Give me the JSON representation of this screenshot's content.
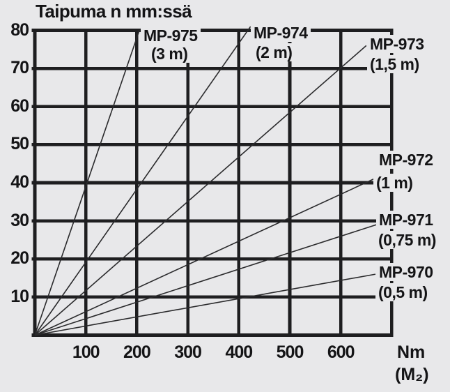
{
  "chart_data": {
    "type": "line",
    "title": "Taipuma n mm:ssä",
    "xlabel_unit_line1": "Nm",
    "xlabel_unit_line2": "(M₂)",
    "ylabel": "Taipuma n mm:ssä",
    "xlim": [
      0,
      700
    ],
    "ylim": [
      0,
      80
    ],
    "grid": true,
    "x_ticks": [
      100,
      200,
      300,
      400,
      500,
      600
    ],
    "y_ticks": [
      10,
      20,
      30,
      40,
      50,
      60,
      70,
      80
    ],
    "legend_position": "labels-on-lines",
    "series": [
      {
        "name": "MP-975",
        "length_label": "(3 m)",
        "points": [
          [
            0,
            0
          ],
          [
            205,
            80
          ]
        ]
      },
      {
        "name": "MP-974",
        "length_label": "(2 m)",
        "points": [
          [
            0,
            0
          ],
          [
            423,
            81
          ]
        ]
      },
      {
        "name": "MP-973",
        "length_label": "(1,5 m)",
        "points": [
          [
            0,
            0
          ],
          [
            650,
            76
          ]
        ]
      },
      {
        "name": "MP-972",
        "length_label": "(1 m)",
        "points": [
          [
            0,
            0
          ],
          [
            665,
            41
          ]
        ]
      },
      {
        "name": "MP-971",
        "length_label": "(0,75 m)",
        "points": [
          [
            0,
            0
          ],
          [
            670,
            29
          ]
        ]
      },
      {
        "name": "MP-970",
        "length_label": "(0,5 m)",
        "points": [
          [
            0,
            0
          ],
          [
            668,
            16
          ]
        ]
      }
    ],
    "colors": {
      "background": "#e8e8ea",
      "grid": "#1e1e20",
      "line": "#2a2a2c",
      "text": "#141416"
    }
  }
}
